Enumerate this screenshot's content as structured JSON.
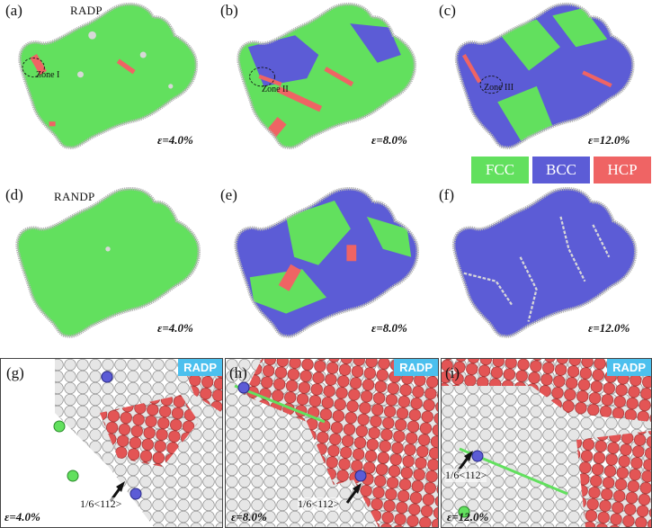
{
  "colors": {
    "fcc": "#62e05e",
    "bcc": "#5c5cd6",
    "hcp": "#ef6464",
    "surface": "#d8d8d8",
    "badge": "#4cc0ee"
  },
  "panels": {
    "a": {
      "label": "(a)",
      "title": "RADP",
      "strain": "ε=4.0%",
      "zone": "Zone I"
    },
    "b": {
      "label": "(b)",
      "strain": "ε=8.0%",
      "zone": "Zone II"
    },
    "c": {
      "label": "(c)",
      "strain": "ε=12.0%",
      "zone": "Zone III"
    },
    "d": {
      "label": "(d)",
      "title": "RANDP",
      "strain": "ε=4.0%"
    },
    "e": {
      "label": "(e)",
      "strain": "ε=8.0%"
    },
    "f": {
      "label": "(f)",
      "strain": "ε=12.0%"
    },
    "g": {
      "label": "(g)",
      "badge": "RADP",
      "strain": "ε=4.0%",
      "burgers": "1/6<112>"
    },
    "h": {
      "label": "(h)",
      "badge": "RADP",
      "strain": "ε=8.0%",
      "burgers": "1/6<112>"
    },
    "i": {
      "label": "(i)",
      "badge": "RADP",
      "strain": "ε=12.0%",
      "burgers": "1/6<112>"
    }
  },
  "legend": [
    {
      "label": "FCC",
      "color": "#62e05e"
    },
    {
      "label": "BCC",
      "color": "#5c5cd6"
    },
    {
      "label": "HCP",
      "color": "#ef6464"
    }
  ]
}
